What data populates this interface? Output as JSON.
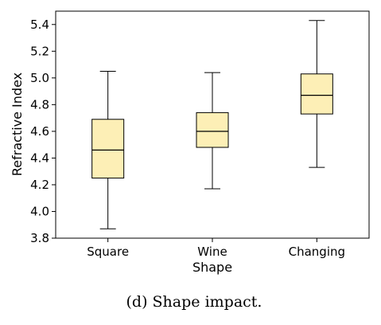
{
  "chart_data": {
    "type": "box",
    "xlabel": "Shape",
    "ylabel": "Refractive Index",
    "ylim": [
      3.8,
      5.5
    ],
    "yticks": [
      3.8,
      4.0,
      4.2,
      4.4,
      4.6,
      4.8,
      5.0,
      5.2,
      5.4
    ],
    "ytick_labels": [
      "3.8",
      "4.0",
      "4.2",
      "4.4",
      "4.6",
      "4.8",
      "5.0",
      "5.2",
      "5.4"
    ],
    "categories": [
      "Square",
      "Wine",
      "Changing"
    ],
    "boxes": [
      {
        "category": "Square",
        "whisker_low": 3.87,
        "q1": 4.25,
        "median": 4.46,
        "q3": 4.69,
        "whisker_high": 5.05
      },
      {
        "category": "Wine",
        "whisker_low": 4.17,
        "q1": 4.48,
        "median": 4.6,
        "q3": 4.74,
        "whisker_high": 5.04
      },
      {
        "category": "Changing",
        "whisker_low": 4.33,
        "q1": 4.73,
        "median": 4.87,
        "q3": 5.03,
        "whisker_high": 5.43
      }
    ],
    "box_fill": "#fdefb6",
    "line_color": "#000000",
    "grid": false
  },
  "caption": "(d) Shape impact."
}
